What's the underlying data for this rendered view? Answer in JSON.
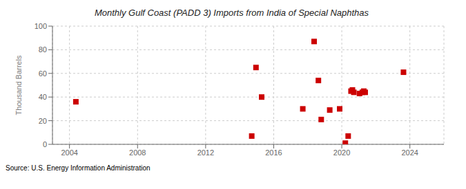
{
  "chart_data": {
    "type": "scatter",
    "title": "Monthly Gulf Coast (PADD 3) Imports from India of Special Naphthas",
    "ylabel": "Thousand Barrels",
    "annotations": [
      "Source: U.S. Energy Information Administration"
    ],
    "x": [
      2004.375,
      2014.7083333333333,
      2014.9583333333333,
      2015.2916666666667,
      2017.7083333333333,
      2018.375,
      2018.625,
      2018.7916666666667,
      2019.2916666666667,
      2019.875,
      2020.2083333333333,
      2020.375,
      2020.5416666666667,
      2020.625,
      2020.7083333333333,
      2021.0416666666667,
      2021.2083333333333,
      2021.2916666666667,
      2021.375,
      2023.625
    ],
    "values": [
      36,
      7,
      65,
      40,
      30,
      87,
      54,
      21,
      29,
      30,
      1,
      7,
      45,
      46,
      44,
      43,
      44,
      45,
      44,
      61
    ],
    "color": "#cc0000",
    "marker": "square",
    "xlim": [
      2003.0,
      2026.0
    ],
    "ylim": [
      0,
      100
    ],
    "xticks": [
      2004,
      2008,
      2012,
      2016,
      2020,
      2024
    ],
    "yticks": [
      0,
      20,
      40,
      60,
      80,
      100
    ],
    "grid": true
  }
}
